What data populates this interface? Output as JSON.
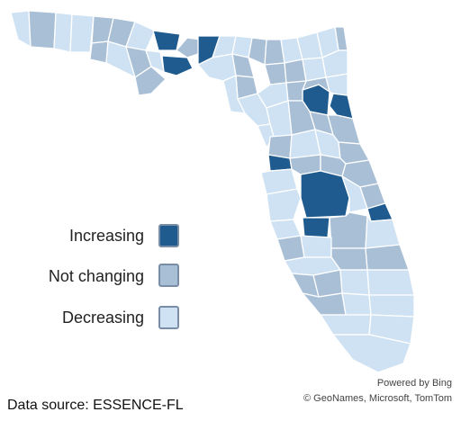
{
  "legend": [
    {
      "label": "Increasing",
      "color": "#1f5b8e"
    },
    {
      "label": "Not changing",
      "color": "#a9bfd6"
    },
    {
      "label": "Decreasing",
      "color": "#cfe2f3"
    }
  ],
  "data_source": "Data source: ESSENCE-FL",
  "credits": {
    "powered": "Powered by Bing",
    "copyright": "© GeoNames, Microsoft, TomTom"
  }
}
